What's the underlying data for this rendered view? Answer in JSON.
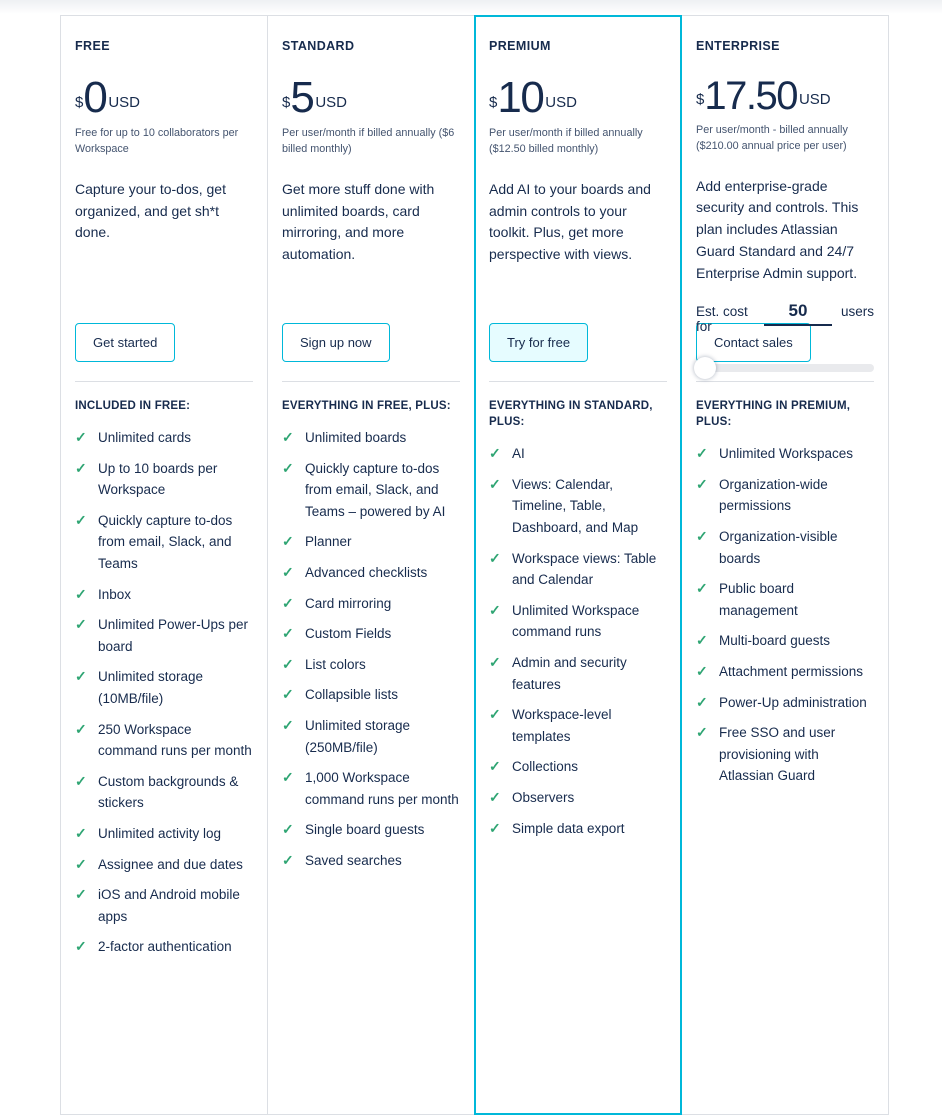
{
  "colors": {
    "accent_cyan": "#00B8D9",
    "check_green": "#2FA573",
    "text_dark": "#172B4D",
    "text_sub": "#44546F",
    "card_border": "#DCDFE4",
    "highlight_button_fill": "#E6FCFF"
  },
  "plans": [
    {
      "name": "FREE",
      "currency": "$",
      "price": "0",
      "unit": "USD",
      "billing_note": "Free for up to 10 collaborators per Workspace",
      "description": "Capture your to-dos, get organized, and get sh*t done.",
      "cta": "Get started",
      "list_header": "INCLUDED IN FREE:",
      "features": [
        "Unlimited cards",
        "Up to 10 boards per Workspace",
        "Quickly capture to-dos from email, Slack, and Teams",
        "Inbox",
        "Unlimited Power-Ups per board",
        "Unlimited storage (10MB/file)",
        "250 Workspace command runs per month",
        "Custom backgrounds & stickers",
        "Unlimited activity log",
        "Assignee and due dates",
        "iOS and Android mobile apps",
        "2-factor authentication"
      ]
    },
    {
      "name": "STANDARD",
      "currency": "$",
      "price": "5",
      "unit": "USD",
      "billing_note": "Per user/month if billed annually ($6 billed monthly)",
      "description": "Get more stuff done with unlimited boards, card mirroring, and more automation.",
      "cta": "Sign up now",
      "list_header": "EVERYTHING IN FREE, PLUS:",
      "features": [
        "Unlimited boards",
        "Quickly capture to-dos from email, Slack, and Teams – powered by AI",
        "Planner",
        "Advanced checklists",
        "Card mirroring",
        "Custom Fields",
        "List colors",
        "Collapsible lists",
        "Unlimited storage (250MB/file)",
        "1,000 Workspace command runs per month",
        "Single board guests",
        "Saved searches"
      ]
    },
    {
      "name": "PREMIUM",
      "currency": "$",
      "price": "10",
      "unit": "USD",
      "highlighted": true,
      "billing_note": "Per user/month if billed annually ($12.50 billed monthly)",
      "description": "Add AI to your boards and admin controls to your toolkit. Plus, get more perspective with views.",
      "cta": "Try for free",
      "list_header": "EVERYTHING IN STANDARD, PLUS:",
      "features": [
        "AI",
        "Views: Calendar, Timeline, Table, Dashboard, and Map",
        "Workspace views: Table and Calendar",
        "Unlimited Workspace command runs",
        "Admin and security features",
        "Workspace-level templates",
        "Collections",
        "Observers",
        "Simple data export"
      ]
    },
    {
      "name": "ENTERPRISE",
      "currency": "$",
      "price": "17.50",
      "price_small": true,
      "unit": "USD",
      "billing_note": "Per user/month - billed annually ($210.00 annual price per user)",
      "description": "Add enterprise-grade security and controls. This plan includes Atlassian Guard Standard and 24/7 Enterprise Admin support.",
      "estimator": {
        "prefix": "Est. cost for",
        "value": "50",
        "suffix": "users"
      },
      "cta": "Contact sales",
      "list_header": "EVERYTHING IN PREMIUM, PLUS:",
      "features": [
        "Unlimited Workspaces",
        "Organization-wide permissions",
        "Organization-visible boards",
        "Public board management",
        "Multi-board guests",
        "Attachment permissions",
        "Power-Up administration",
        "Free SSO and user provisioning with Atlassian Guard"
      ]
    }
  ]
}
